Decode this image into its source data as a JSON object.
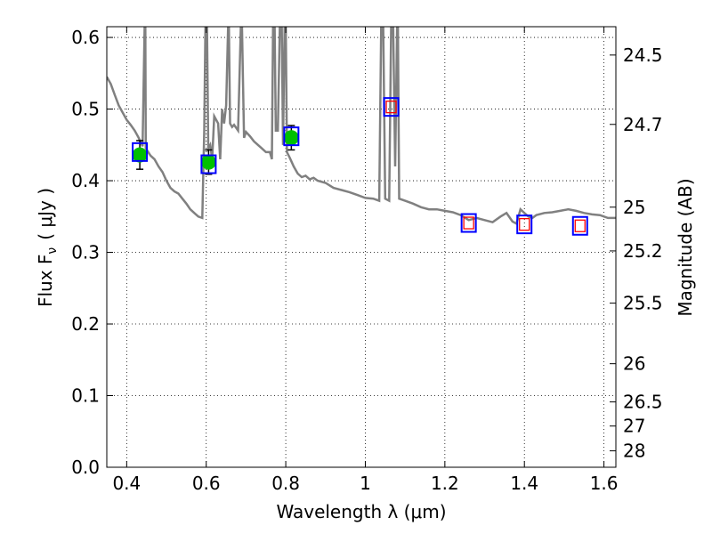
{
  "chart_data": {
    "type": "scatter",
    "xlabel": "Wavelength  λ (μm)",
    "ylabel": "Flux  F",
    "ylabel_sub": "ν",
    "ylabel_unit": "( μJy )",
    "y2label": "Magnitude (AB)",
    "xlim": [
      0.35,
      1.63
    ],
    "ylim": [
      0.0,
      0.615
    ],
    "grid": true,
    "x_ticks": [
      {
        "value": 0.4,
        "label": "0.4"
      },
      {
        "value": 0.6,
        "label": "0.6"
      },
      {
        "value": 0.8,
        "label": "0.8"
      },
      {
        "value": 1.0,
        "label": "1"
      },
      {
        "value": 1.2,
        "label": "1.2"
      },
      {
        "value": 1.4,
        "label": "1.4"
      },
      {
        "value": 1.6,
        "label": "1.6"
      }
    ],
    "y_ticks": [
      {
        "value": 0.0,
        "label": "0.0"
      },
      {
        "value": 0.1,
        "label": "0.1"
      },
      {
        "value": 0.2,
        "label": "0.2"
      },
      {
        "value": 0.3,
        "label": "0.3"
      },
      {
        "value": 0.4,
        "label": "0.4"
      },
      {
        "value": 0.5,
        "label": "0.5"
      },
      {
        "value": 0.6,
        "label": "0.6"
      }
    ],
    "y2_ticks": [
      {
        "value": 24.5,
        "label": "24.5"
      },
      {
        "value": 24.7,
        "label": "24.7"
      },
      {
        "value": 25,
        "label": "25"
      },
      {
        "value": 25.2,
        "label": "25.2"
      },
      {
        "value": 25.5,
        "label": "25.5"
      },
      {
        "value": 26,
        "label": "26"
      },
      {
        "value": 26.5,
        "label": "26.5"
      },
      {
        "value": 27,
        "label": "27"
      },
      {
        "value": 28,
        "label": "28"
      }
    ],
    "spectrum": {
      "color": "#808080",
      "points": [
        [
          0.35,
          0.545
        ],
        [
          0.36,
          0.535
        ],
        [
          0.37,
          0.52
        ],
        [
          0.38,
          0.505
        ],
        [
          0.39,
          0.495
        ],
        [
          0.4,
          0.485
        ],
        [
          0.41,
          0.478
        ],
        [
          0.42,
          0.47
        ],
        [
          0.43,
          0.46
        ],
        [
          0.44,
          0.448
        ],
        [
          0.445,
          0.615
        ],
        [
          0.447,
          0.615
        ],
        [
          0.448,
          0.445
        ],
        [
          0.46,
          0.435
        ],
        [
          0.47,
          0.43
        ],
        [
          0.48,
          0.42
        ],
        [
          0.49,
          0.412
        ],
        [
          0.5,
          0.4
        ],
        [
          0.51,
          0.39
        ],
        [
          0.52,
          0.385
        ],
        [
          0.53,
          0.382
        ],
        [
          0.54,
          0.375
        ],
        [
          0.55,
          0.368
        ],
        [
          0.56,
          0.36
        ],
        [
          0.57,
          0.355
        ],
        [
          0.58,
          0.35
        ],
        [
          0.59,
          0.348
        ],
        [
          0.595,
          0.47
        ],
        [
          0.598,
          0.615
        ],
        [
          0.602,
          0.615
        ],
        [
          0.605,
          0.445
        ],
        [
          0.61,
          0.45
        ],
        [
          0.615,
          0.43
        ],
        [
          0.62,
          0.49
        ],
        [
          0.63,
          0.48
        ],
        [
          0.635,
          0.43
        ],
        [
          0.64,
          0.5
        ],
        [
          0.645,
          0.48
        ],
        [
          0.65,
          0.505
        ],
        [
          0.655,
          0.615
        ],
        [
          0.657,
          0.615
        ],
        [
          0.66,
          0.48
        ],
        [
          0.665,
          0.475
        ],
        [
          0.67,
          0.478
        ],
        [
          0.68,
          0.47
        ],
        [
          0.687,
          0.615
        ],
        [
          0.69,
          0.615
        ],
        [
          0.695,
          0.46
        ],
        [
          0.7,
          0.468
        ],
        [
          0.71,
          0.462
        ],
        [
          0.72,
          0.455
        ],
        [
          0.73,
          0.45
        ],
        [
          0.74,
          0.445
        ],
        [
          0.75,
          0.44
        ],
        [
          0.76,
          0.44
        ],
        [
          0.765,
          0.43
        ],
        [
          0.768,
          0.615
        ],
        [
          0.772,
          0.615
        ],
        [
          0.775,
          0.47
        ],
        [
          0.78,
          0.47
        ],
        [
          0.785,
          0.615
        ],
        [
          0.79,
          0.615
        ],
        [
          0.793,
          0.45
        ],
        [
          0.797,
          0.615
        ],
        [
          0.8,
          0.615
        ],
        [
          0.803,
          0.44
        ],
        [
          0.81,
          0.432
        ],
        [
          0.82,
          0.42
        ],
        [
          0.83,
          0.41
        ],
        [
          0.84,
          0.405
        ],
        [
          0.85,
          0.407
        ],
        [
          0.86,
          0.402
        ],
        [
          0.87,
          0.404
        ],
        [
          0.88,
          0.4
        ],
        [
          0.9,
          0.397
        ],
        [
          0.92,
          0.39
        ],
        [
          0.94,
          0.387
        ],
        [
          0.96,
          0.384
        ],
        [
          0.98,
          0.38
        ],
        [
          1.0,
          0.376
        ],
        [
          1.02,
          0.375
        ],
        [
          1.035,
          0.372
        ],
        [
          1.04,
          0.615
        ],
        [
          1.045,
          0.615
        ],
        [
          1.05,
          0.375
        ],
        [
          1.06,
          0.372
        ],
        [
          1.065,
          0.615
        ],
        [
          1.07,
          0.615
        ],
        [
          1.075,
          0.42
        ],
        [
          1.08,
          0.615
        ],
        [
          1.082,
          0.615
        ],
        [
          1.085,
          0.375
        ],
        [
          1.1,
          0.372
        ],
        [
          1.12,
          0.368
        ],
        [
          1.14,
          0.363
        ],
        [
          1.16,
          0.36
        ],
        [
          1.18,
          0.36
        ],
        [
          1.2,
          0.358
        ],
        [
          1.22,
          0.356
        ],
        [
          1.24,
          0.352
        ],
        [
          1.26,
          0.345
        ],
        [
          1.28,
          0.348
        ],
        [
          1.3,
          0.345
        ],
        [
          1.32,
          0.342
        ],
        [
          1.34,
          0.35
        ],
        [
          1.355,
          0.355
        ],
        [
          1.37,
          0.343
        ],
        [
          1.38,
          0.34
        ],
        [
          1.39,
          0.36
        ],
        [
          1.4,
          0.355
        ],
        [
          1.41,
          0.35
        ],
        [
          1.42,
          0.348
        ],
        [
          1.43,
          0.352
        ],
        [
          1.45,
          0.355
        ],
        [
          1.47,
          0.356
        ],
        [
          1.49,
          0.358
        ],
        [
          1.51,
          0.36
        ],
        [
          1.53,
          0.358
        ],
        [
          1.55,
          0.355
        ],
        [
          1.57,
          0.353
        ],
        [
          1.59,
          0.352
        ],
        [
          1.61,
          0.348
        ],
        [
          1.63,
          0.348
        ]
      ]
    },
    "observed": [
      {
        "x": 0.433,
        "y": 0.436,
        "yerr": 0.02
      },
      {
        "x": 0.606,
        "y": 0.426,
        "yerr": 0.017
      },
      {
        "x": 0.814,
        "y": 0.46,
        "yerr": 0.017
      }
    ],
    "model_boxes": [
      {
        "x": 0.433,
        "y": 0.44
      },
      {
        "x": 0.606,
        "y": 0.423
      },
      {
        "x": 0.814,
        "y": 0.462
      },
      {
        "x": 1.065,
        "y": 0.503
      },
      {
        "x": 1.26,
        "y": 0.341
      },
      {
        "x": 1.4,
        "y": 0.339
      },
      {
        "x": 1.54,
        "y": 0.337
      }
    ],
    "upper_limits": [
      {
        "x": 1.065,
        "y": 0.503
      },
      {
        "x": 1.26,
        "y": 0.341
      },
      {
        "x": 1.4,
        "y": 0.339
      },
      {
        "x": 1.54,
        "y": 0.337
      }
    ],
    "colors": {
      "spectrum": "#808080",
      "observed": "#00c000",
      "model_box": "#0000ff",
      "upper_limit": "#ff0000",
      "errorbar": "#000000",
      "grid": "#000000"
    }
  }
}
